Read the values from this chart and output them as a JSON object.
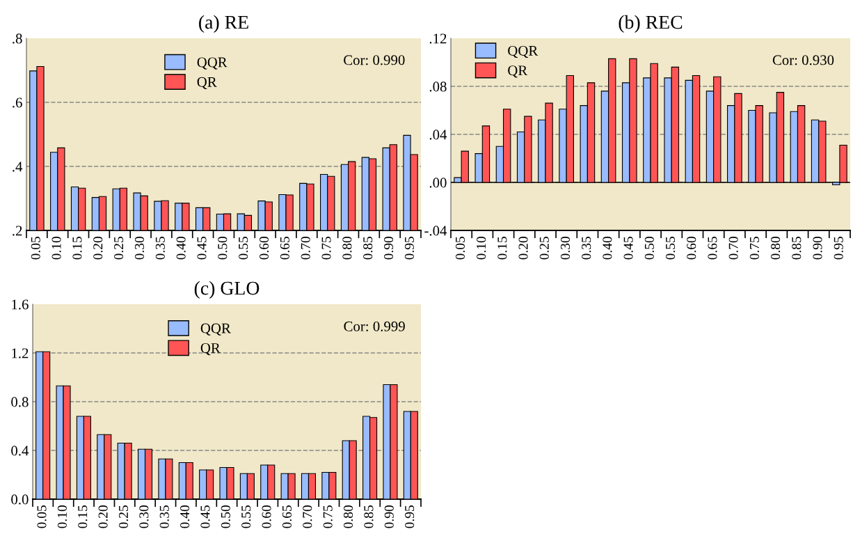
{
  "chart_data": [
    {
      "type": "bar",
      "title": "(a) RE",
      "categories": [
        "0.05",
        "0.10",
        "0.15",
        "0.20",
        "0.25",
        "0.30",
        "0.35",
        "0.40",
        "0.45",
        "0.50",
        "0.55",
        "0.60",
        "0.65",
        "0.70",
        "0.75",
        "0.80",
        "0.85",
        "0.90",
        "0.95"
      ],
      "series": [
        {
          "name": "QQR",
          "color": "#99bbff",
          "values": [
            0.698,
            0.444,
            0.336,
            0.303,
            0.33,
            0.317,
            0.291,
            0.285,
            0.271,
            0.251,
            0.252,
            0.292,
            0.312,
            0.347,
            0.375,
            0.406,
            0.428,
            0.458,
            0.497
          ]
        },
        {
          "name": "QR",
          "color": "#ff5555",
          "values": [
            0.712,
            0.458,
            0.332,
            0.306,
            0.332,
            0.308,
            0.293,
            0.285,
            0.271,
            0.252,
            0.247,
            0.289,
            0.311,
            0.345,
            0.369,
            0.415,
            0.424,
            0.468,
            0.437
          ]
        }
      ],
      "ylim": [
        0.2,
        0.8
      ],
      "yticks": [
        {
          "value": 0.2,
          "label": ".2"
        },
        {
          "value": 0.4,
          "label": ".4"
        },
        {
          "value": 0.6,
          "label": ".6"
        },
        {
          "value": 0.8,
          "label": ".8"
        }
      ],
      "grid": "y",
      "legend": "top",
      "annotations": [
        "Cor: 0.990"
      ]
    },
    {
      "type": "bar",
      "title": "(b) REC",
      "categories": [
        "0.05",
        "0.10",
        "0.15",
        "0.20",
        "0.25",
        "0.30",
        "0.35",
        "0.40",
        "0.45",
        "0.50",
        "0.55",
        "0.60",
        "0.65",
        "0.70",
        "0.75",
        "0.80",
        "0.85",
        "0.90",
        "0.95"
      ],
      "series": [
        {
          "name": "QQR",
          "color": "#99bbff",
          "values": [
            0.004,
            0.024,
            0.03,
            0.042,
            0.052,
            0.061,
            0.064,
            0.076,
            0.083,
            0.087,
            0.087,
            0.085,
            0.076,
            0.064,
            0.06,
            0.058,
            0.059,
            0.052,
            -0.002
          ]
        },
        {
          "name": "QR",
          "color": "#ff5555",
          "values": [
            0.026,
            0.047,
            0.061,
            0.055,
            0.066,
            0.089,
            0.083,
            0.103,
            0.103,
            0.099,
            0.096,
            0.089,
            0.088,
            0.074,
            0.064,
            0.075,
            0.064,
            0.051,
            0.031
          ]
        }
      ],
      "ylim": [
        -0.04,
        0.12
      ],
      "yticks": [
        {
          "value": -0.04,
          "label": "-.04"
        },
        {
          "value": 0.0,
          "label": ".00"
        },
        {
          "value": 0.04,
          "label": ".04"
        },
        {
          "value": 0.08,
          "label": ".08"
        },
        {
          "value": 0.12,
          "label": ".12"
        }
      ],
      "grid": "y",
      "legend": "top left",
      "annotations": [
        "Cor: 0.930"
      ],
      "ref_lines": [
        {
          "axis": "y",
          "value": 0,
          "color": "#000000",
          "line_style": "solid"
        }
      ]
    },
    {
      "type": "bar",
      "title": "(c) GLO",
      "categories": [
        "0.05",
        "0.10",
        "0.15",
        "0.20",
        "0.25",
        "0.30",
        "0.35",
        "0.40",
        "0.45",
        "0.50",
        "0.55",
        "0.60",
        "0.65",
        "0.70",
        "0.75",
        "0.80",
        "0.85",
        "0.90",
        "0.95"
      ],
      "series": [
        {
          "name": "QQR",
          "color": "#99bbff",
          "values": [
            1.21,
            0.93,
            0.68,
            0.53,
            0.46,
            0.41,
            0.33,
            0.3,
            0.24,
            0.26,
            0.21,
            0.28,
            0.21,
            0.21,
            0.22,
            0.48,
            0.68,
            0.94,
            0.72
          ]
        },
        {
          "name": "QR",
          "color": "#ff5555",
          "values": [
            1.21,
            0.93,
            0.68,
            0.53,
            0.46,
            0.41,
            0.33,
            0.3,
            0.24,
            0.26,
            0.21,
            0.28,
            0.21,
            0.21,
            0.22,
            0.48,
            0.67,
            0.94,
            0.72
          ]
        }
      ],
      "ylim": [
        0.0,
        1.6
      ],
      "yticks": [
        {
          "value": 0.0,
          "label": "0.0"
        },
        {
          "value": 0.4,
          "label": "0.4"
        },
        {
          "value": 0.8,
          "label": "0.8"
        },
        {
          "value": 1.2,
          "label": "1.2"
        },
        {
          "value": 1.6,
          "label": "1.6"
        }
      ],
      "grid": "y",
      "legend": "top",
      "annotations": [
        "Cor: 0.999"
      ]
    }
  ]
}
